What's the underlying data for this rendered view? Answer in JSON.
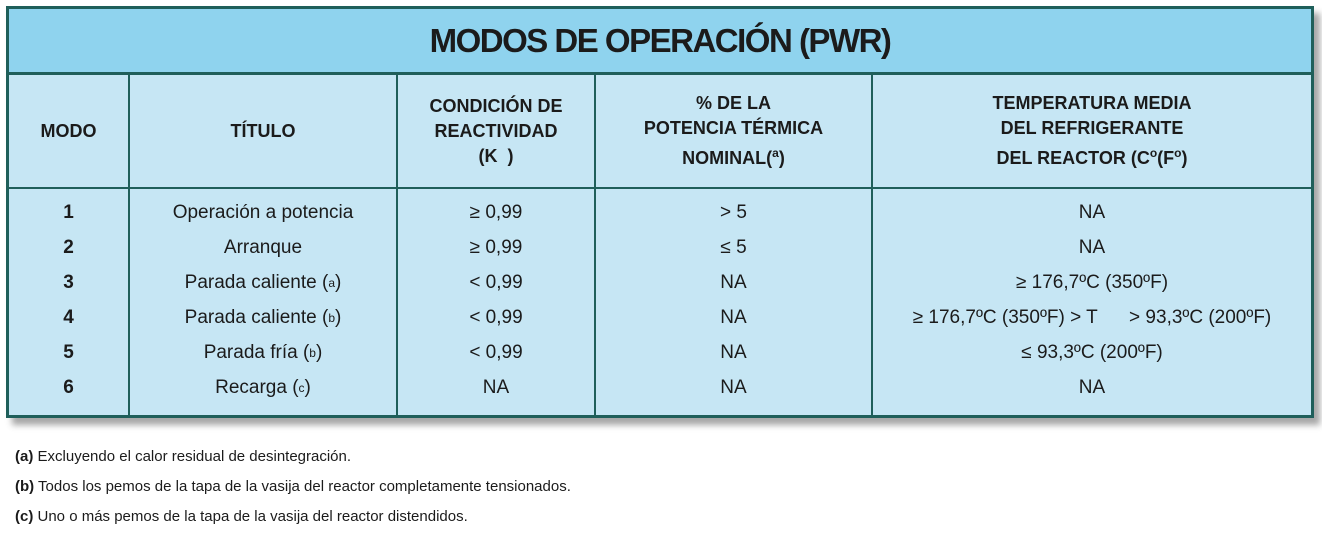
{
  "table": {
    "title": "MODOS DE OPERACIÓN (PWR)",
    "headers": {
      "modo": "MODO",
      "titulo": "TÍTULO",
      "reactividad": [
        "CONDICIÓN DE",
        "REACTIVIDAD",
        "(K  )"
      ],
      "potencia": [
        "% DE LA",
        "POTENCIA TÉRMICA",
        "NOMINAL(",
        "a",
        ")"
      ],
      "temperatura": [
        "TEMPERATURA MEDIA",
        "DEL REFRIGERANTE",
        "DEL REACTOR (C",
        "o",
        "(F",
        "o",
        ")"
      ]
    },
    "rows": [
      {
        "modo": "1",
        "titulo": "Operación a potencia",
        "titulo_note": "",
        "reactividad": "≥ 0,99",
        "potencia": "> 5",
        "temperatura": "NA"
      },
      {
        "modo": "2",
        "titulo": "Arranque",
        "titulo_note": "",
        "reactividad": "≥ 0,99",
        "potencia": "≤ 5",
        "temperatura": "NA"
      },
      {
        "modo": "3",
        "titulo": "Parada caliente (",
        "titulo_note": "a",
        "reactividad": "< 0,99",
        "potencia": "NA",
        "temperatura": "≥ 176,7ºC (350ºF)"
      },
      {
        "modo": "4",
        "titulo": "Parada caliente (",
        "titulo_note": "b",
        "reactividad": "< 0,99",
        "potencia": "NA",
        "temperatura": "≥ 176,7ºC (350ºF) > T      > 93,3ºC (200ºF)"
      },
      {
        "modo": "5",
        "titulo": "Parada fría (",
        "titulo_note": "b",
        "reactividad": "< 0,99",
        "potencia": "NA",
        "temperatura": "≤ 93,3ºC (200ºF)"
      },
      {
        "modo": "6",
        "titulo": "Recarga (",
        "titulo_note": "c",
        "reactividad": "NA",
        "potencia": "NA",
        "temperatura": "NA"
      }
    ]
  },
  "notes": [
    {
      "label": "(a)",
      "text": " Excluyendo el calor residual de desintegración."
    },
    {
      "label": "(b)",
      "text": " Todos los pemos de la tapa de la vasija del reactor completamente tensionados."
    },
    {
      "label": "(c)",
      "text": " Uno o más pemos de la tapa de la vasija del reactor distendidos."
    }
  ]
}
